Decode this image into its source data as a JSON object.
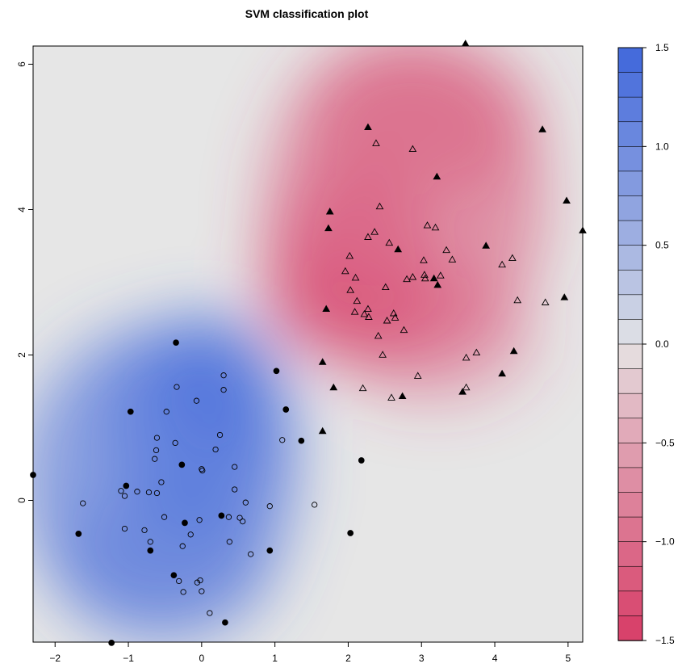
{
  "chart_data": {
    "type": "scatter",
    "title": "SVM classification plot",
    "xlabel": "",
    "ylabel": "",
    "xlim": [
      -2.3,
      5.2
    ],
    "ylim": [
      -1.95,
      6.25
    ],
    "x_ticks": [
      -2,
      -1,
      0,
      1,
      2,
      3,
      4,
      5
    ],
    "y_ticks": [
      0,
      2,
      4,
      6
    ],
    "grid": false,
    "background": "filled decision-value contour map: blue = positive, pink/red = negative, light grey = near 0",
    "colorbar": {
      "range": [
        -1.5,
        1.5
      ],
      "ticks": [
        1.5,
        1.0,
        0.5,
        0.0,
        -0.5,
        -1.0,
        -1.5
      ],
      "tick_labels": [
        "1.5",
        "1.0",
        "0.5",
        "0.0",
        "−0.5",
        "−1.0",
        "−1.5"
      ],
      "levels": 24,
      "colors": {
        "positive": "#3f66db",
        "zero": "#e6e6e6",
        "negative": "#d73c66"
      }
    },
    "series": [
      {
        "marker": "open-circle",
        "points": [
          [
            -0.34,
            1.56
          ],
          [
            -0.07,
            1.37
          ],
          [
            0.3,
            1.72
          ],
          [
            0.3,
            1.52
          ],
          [
            -0.48,
            1.22
          ],
          [
            0.25,
            0.9
          ],
          [
            -0.36,
            0.79
          ],
          [
            -0.61,
            0.86
          ],
          [
            0.19,
            0.7
          ],
          [
            -0.62,
            0.69
          ],
          [
            -0.64,
            0.57
          ],
          [
            -0.55,
            0.25
          ],
          [
            0.45,
            0.46
          ],
          [
            1.1,
            0.83
          ],
          [
            0.01,
            0.41
          ],
          [
            0.0,
            0.43
          ],
          [
            -1.62,
            -0.04
          ],
          [
            -1.1,
            0.13
          ],
          [
            -1.05,
            0.06
          ],
          [
            -0.88,
            0.12
          ],
          [
            -0.72,
            0.11
          ],
          [
            -0.61,
            0.1
          ],
          [
            0.45,
            0.15
          ],
          [
            0.6,
            -0.03
          ],
          [
            0.93,
            -0.08
          ],
          [
            1.54,
            -0.06
          ],
          [
            -0.03,
            -0.27
          ],
          [
            -0.51,
            -0.23
          ],
          [
            0.37,
            -0.23
          ],
          [
            0.52,
            -0.24
          ],
          [
            0.56,
            -0.29
          ],
          [
            -1.05,
            -0.39
          ],
          [
            -0.78,
            -0.41
          ],
          [
            -0.15,
            -0.47
          ],
          [
            -0.26,
            -0.63
          ],
          [
            0.67,
            -0.74
          ],
          [
            -0.7,
            -0.57
          ],
          [
            0.38,
            -0.57
          ],
          [
            -0.02,
            -1.1
          ],
          [
            -0.06,
            -1.13
          ],
          [
            0.0,
            -1.25
          ],
          [
            -0.31,
            -1.11
          ],
          [
            -0.25,
            -1.26
          ],
          [
            0.11,
            -1.55
          ]
        ]
      },
      {
        "marker": "filled-circle",
        "points": [
          [
            -0.35,
            2.17
          ],
          [
            1.02,
            1.78
          ],
          [
            -0.97,
            1.22
          ],
          [
            1.15,
            1.25
          ],
          [
            -0.27,
            0.49
          ],
          [
            1.36,
            0.82
          ],
          [
            2.18,
            0.55
          ],
          [
            -2.3,
            0.35
          ],
          [
            -1.03,
            0.2
          ],
          [
            0.27,
            -0.21
          ],
          [
            -0.23,
            -0.31
          ],
          [
            -1.68,
            -0.46
          ],
          [
            -0.7,
            -0.69
          ],
          [
            0.93,
            -0.69
          ],
          [
            2.03,
            -0.45
          ],
          [
            -0.38,
            -1.03
          ],
          [
            0.32,
            -1.68
          ],
          [
            -1.23,
            -1.96
          ]
        ]
      },
      {
        "marker": "open-triangle",
        "points": [
          [
            2.38,
            4.91
          ],
          [
            2.88,
            4.83
          ],
          [
            2.43,
            4.04
          ],
          [
            2.36,
            3.69
          ],
          [
            2.27,
            3.62
          ],
          [
            2.56,
            3.54
          ],
          [
            3.08,
            3.78
          ],
          [
            3.19,
            3.75
          ],
          [
            2.02,
            3.36
          ],
          [
            1.96,
            3.15
          ],
          [
            2.1,
            3.06
          ],
          [
            2.03,
            2.89
          ],
          [
            2.12,
            2.74
          ],
          [
            2.09,
            2.59
          ],
          [
            2.22,
            2.56
          ],
          [
            2.27,
            2.63
          ],
          [
            2.28,
            2.52
          ],
          [
            2.51,
            2.93
          ],
          [
            2.53,
            2.47
          ],
          [
            2.62,
            2.57
          ],
          [
            2.64,
            2.51
          ],
          [
            2.8,
            3.04
          ],
          [
            2.88,
            3.07
          ],
          [
            3.04,
            3.1
          ],
          [
            3.05,
            3.05
          ],
          [
            3.03,
            3.3
          ],
          [
            3.34,
            3.44
          ],
          [
            3.42,
            3.31
          ],
          [
            3.26,
            3.09
          ],
          [
            2.41,
            2.26
          ],
          [
            2.76,
            2.34
          ],
          [
            2.47,
            2.0
          ],
          [
            2.2,
            1.54
          ],
          [
            2.59,
            1.41
          ],
          [
            2.95,
            1.71
          ],
          [
            3.61,
            1.55
          ],
          [
            3.61,
            1.96
          ],
          [
            3.75,
            2.03
          ],
          [
            4.1,
            3.24
          ],
          [
            4.24,
            3.33
          ],
          [
            4.31,
            2.75
          ],
          [
            4.69,
            2.72
          ]
        ]
      },
      {
        "marker": "filled-triangle",
        "points": [
          [
            2.27,
            5.13
          ],
          [
            4.65,
            5.1
          ],
          [
            3.21,
            4.45
          ],
          [
            4.98,
            4.12
          ],
          [
            1.75,
            3.97
          ],
          [
            1.73,
            3.74
          ],
          [
            5.2,
            3.71
          ],
          [
            3.88,
            3.5
          ],
          [
            2.68,
            3.45
          ],
          [
            3.17,
            3.05
          ],
          [
            3.22,
            2.96
          ],
          [
            4.95,
            2.79
          ],
          [
            1.7,
            2.63
          ],
          [
            1.65,
            1.9
          ],
          [
            4.26,
            2.05
          ],
          [
            4.1,
            1.74
          ],
          [
            3.56,
            1.49
          ],
          [
            1.8,
            1.55
          ],
          [
            2.74,
            1.43
          ],
          [
            1.65,
            0.95
          ],
          [
            3.6,
            6.28
          ]
        ]
      }
    ]
  }
}
